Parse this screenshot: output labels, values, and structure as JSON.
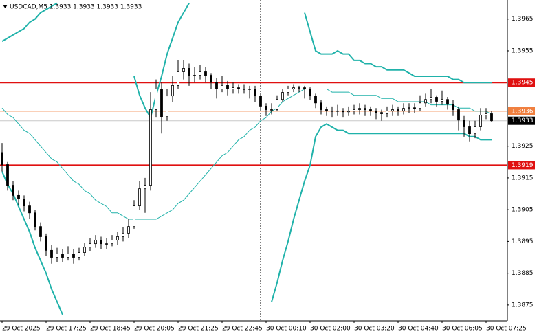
{
  "chart_data": {
    "type": "candlestick",
    "title": "USDCAD,M5  1.3933 1.3933 1.3933 1.3933",
    "categories": [
      "29 Oct 2025",
      null,
      null,
      null,
      null,
      null,
      null,
      null,
      "29 Oct 17:25",
      null,
      null,
      null,
      null,
      null,
      null,
      null,
      "29 Oct 18:45",
      null,
      null,
      null,
      null,
      null,
      null,
      null,
      "29 Oct 20:05",
      null,
      null,
      null,
      null,
      null,
      null,
      null,
      "29 Oct 21:25",
      null,
      null,
      null,
      null,
      null,
      null,
      null,
      "29 Oct 22:45",
      null,
      null,
      null,
      null,
      null,
      null,
      null,
      "30 Oct 00:10",
      null,
      null,
      null,
      null,
      null,
      null,
      null,
      "30 Oct 02:00",
      null,
      null,
      null,
      null,
      null,
      null,
      null,
      "30 Oct 03:20",
      null,
      null,
      null,
      null,
      null,
      null,
      null,
      "30 Oct 04:40",
      null,
      null,
      null,
      null,
      null,
      null,
      null,
      "30 Oct 06:05",
      null,
      null,
      null,
      null,
      null,
      null,
      null,
      "30 Oct 07:25",
      null
    ],
    "open": [
      1.3923,
      1.39192,
      1.39127,
      1.39095,
      1.39084,
      1.39062,
      1.3904,
      1.38997,
      1.38965,
      1.38922,
      1.389,
      1.38911,
      1.389,
      1.38911,
      1.389,
      1.38915,
      1.38932,
      1.38943,
      1.38954,
      1.38943,
      1.38943,
      1.38954,
      1.38965,
      1.38976,
      1.38997,
      1.39062,
      1.39116,
      1.39127,
      1.39365,
      1.3943,
      1.39343,
      1.39408,
      1.39441,
      1.39484,
      1.39495,
      1.39473,
      1.39473,
      1.39484,
      1.39473,
      1.39451,
      1.3943,
      1.39441,
      1.3943,
      1.39434,
      1.3943,
      1.3943,
      1.3943,
      1.39408,
      1.39376,
      1.39365,
      1.39365,
      1.39397,
      1.39419,
      1.3943,
      1.39434,
      1.39434,
      1.3943,
      1.39408,
      1.39386,
      1.39365,
      1.39361,
      1.39361,
      1.39361,
      1.39358,
      1.39361,
      1.39365,
      1.39369,
      1.39365,
      1.39361,
      1.39356,
      1.39352,
      1.39361,
      1.39365,
      1.39361,
      1.39369,
      1.39371,
      1.39369,
      1.39386,
      1.39397,
      1.39404,
      1.39391,
      1.39397,
      1.39382,
      1.39365,
      1.39332,
      1.39311,
      1.39289,
      1.39311,
      1.39348,
      1.39352
    ],
    "high": [
      1.3926,
      1.392,
      1.3914,
      1.3911,
      1.39095,
      1.39075,
      1.3905,
      1.3901,
      1.38975,
      1.3894,
      1.3893,
      1.38925,
      1.38935,
      1.38925,
      1.3893,
      1.38945,
      1.3896,
      1.3897,
      1.38965,
      1.3896,
      1.3897,
      1.3898,
      1.38995,
      1.3902,
      1.3908,
      1.3914,
      1.3915,
      1.3942,
      1.3946,
      1.3945,
      1.3943,
      1.3947,
      1.3952,
      1.3952,
      1.3951,
      1.395,
      1.39505,
      1.395,
      1.3948,
      1.39465,
      1.3947,
      1.39455,
      1.3945,
      1.39445,
      1.39445,
      1.3944,
      1.3944,
      1.39415,
      1.39385,
      1.39385,
      1.3941,
      1.3943,
      1.3944,
      1.39445,
      1.3944,
      1.3944,
      1.39435,
      1.39415,
      1.39395,
      1.39375,
      1.39375,
      1.3938,
      1.3937,
      1.39375,
      1.3938,
      1.39385,
      1.3938,
      1.39375,
      1.3937,
      1.39365,
      1.39375,
      1.3938,
      1.39375,
      1.39385,
      1.39385,
      1.39385,
      1.3941,
      1.39415,
      1.3943,
      1.3941,
      1.39425,
      1.39405,
      1.39395,
      1.39375,
      1.39345,
      1.3933,
      1.3933,
      1.3937,
      1.3937,
      1.3936
    ],
    "low": [
      1.3917,
      1.3911,
      1.3908,
      1.39065,
      1.39045,
      1.3902,
      1.38985,
      1.3895,
      1.38905,
      1.3888,
      1.38885,
      1.38885,
      1.3889,
      1.3888,
      1.3889,
      1.38905,
      1.3892,
      1.3893,
      1.38925,
      1.38925,
      1.38935,
      1.3894,
      1.3895,
      1.3896,
      1.3899,
      1.3905,
      1.3904,
      1.3911,
      1.3934,
      1.3929,
      1.3933,
      1.3939,
      1.3943,
      1.3946,
      1.3944,
      1.3945,
      1.3946,
      1.3945,
      1.3943,
      1.394,
      1.3942,
      1.3941,
      1.39415,
      1.39415,
      1.39415,
      1.394,
      1.3939,
      1.3936,
      1.39345,
      1.3935,
      1.3936,
      1.3939,
      1.3941,
      1.3942,
      1.3942,
      1.394,
      1.39395,
      1.3937,
      1.3935,
      1.39345,
      1.3934,
      1.39345,
      1.3934,
      1.39345,
      1.3935,
      1.3935,
      1.39345,
      1.39345,
      1.39335,
      1.3933,
      1.3934,
      1.39345,
      1.39345,
      1.3935,
      1.39355,
      1.39355,
      1.3936,
      1.39375,
      1.39385,
      1.39375,
      1.3938,
      1.39365,
      1.39345,
      1.393,
      1.3928,
      1.39265,
      1.39275,
      1.393,
      1.39335,
      1.39325
    ],
    "close": [
      1.39192,
      1.39127,
      1.39095,
      1.39084,
      1.39062,
      1.3904,
      1.38997,
      1.38965,
      1.38922,
      1.389,
      1.38911,
      1.389,
      1.38911,
      1.389,
      1.38915,
      1.38932,
      1.38943,
      1.38954,
      1.38943,
      1.38943,
      1.38954,
      1.38965,
      1.38976,
      1.38997,
      1.39062,
      1.39116,
      1.39127,
      1.39365,
      1.3943,
      1.39343,
      1.39408,
      1.39441,
      1.39484,
      1.39495,
      1.39473,
      1.39473,
      1.39484,
      1.39473,
      1.39451,
      1.3943,
      1.39441,
      1.3943,
      1.39434,
      1.3943,
      1.3943,
      1.3943,
      1.39408,
      1.39376,
      1.39365,
      1.39365,
      1.39397,
      1.39419,
      1.3943,
      1.39434,
      1.39434,
      1.3943,
      1.39408,
      1.39386,
      1.39365,
      1.39361,
      1.39361,
      1.39361,
      1.39358,
      1.39361,
      1.39365,
      1.39369,
      1.39365,
      1.39361,
      1.39356,
      1.39352,
      1.39361,
      1.39365,
      1.39361,
      1.39369,
      1.39371,
      1.39369,
      1.39386,
      1.39397,
      1.39404,
      1.39391,
      1.39397,
      1.39382,
      1.39365,
      1.39332,
      1.39311,
      1.39289,
      1.39311,
      1.39348,
      1.39352,
      1.3933
    ],
    "lines": [
      {
        "color": "#20b2aa",
        "width": 2,
        "values": [
          1.3958,
          1.3959,
          1.396,
          1.3961,
          1.3962,
          1.3964,
          1.3965,
          1.3967,
          1.3968,
          1.3969,
          1.397,
          null,
          null,
          null,
          null,
          null,
          null,
          null,
          null,
          null,
          null,
          null,
          null,
          null,
          1.3947,
          1.3941,
          1.3937,
          1.3934,
          1.3941,
          1.3947,
          1.3954,
          1.3959,
          1.3964,
          1.3967,
          1.397,
          null,
          null,
          null,
          null,
          null,
          null,
          null,
          null,
          null,
          null,
          null,
          null,
          null,
          null,
          null,
          null,
          null,
          null,
          null,
          null,
          1.3967,
          1.3961,
          1.3955,
          1.3954,
          1.3954,
          1.3954,
          1.3955,
          1.3954,
          1.3954,
          1.3952,
          1.3952,
          1.3951,
          1.3951,
          1.395,
          1.395,
          1.3949,
          1.3949,
          1.3949,
          1.3949,
          1.3948,
          1.3947,
          1.3947,
          1.3947,
          1.3947,
          1.3947,
          1.3947,
          1.3947,
          1.3946,
          1.3946,
          1.3945,
          1.3945,
          1.3945,
          1.3945,
          1.3945,
          1.3945
        ]
      },
      {
        "color": "#20b2aa",
        "width": 1,
        "values": [
          1.3937,
          1.3935,
          1.3934,
          1.3932,
          1.393,
          1.3929,
          1.3927,
          1.3925,
          1.3923,
          1.3921,
          1.392,
          1.3918,
          1.3916,
          1.3914,
          1.3913,
          1.3911,
          1.391,
          1.3908,
          1.3907,
          1.3906,
          1.3904,
          1.3904,
          1.3903,
          1.3902,
          1.3902,
          1.3902,
          1.3902,
          1.3902,
          1.3902,
          1.3903,
          1.3904,
          1.3905,
          1.3907,
          1.3908,
          1.391,
          1.3912,
          1.3914,
          1.3916,
          1.3918,
          1.392,
          1.3922,
          1.3923,
          1.3925,
          1.3927,
          1.3928,
          1.393,
          1.3931,
          1.3933,
          1.3934,
          1.3936,
          1.3937,
          1.3939,
          1.394,
          1.3941,
          1.3942,
          1.3943,
          1.3943,
          1.3943,
          1.3943,
          1.3943,
          1.3942,
          1.3942,
          1.3942,
          1.3942,
          1.3941,
          1.3941,
          1.3941,
          1.3941,
          1.3941,
          1.394,
          1.394,
          1.394,
          1.3939,
          1.3939,
          1.3939,
          1.3939,
          1.3939,
          1.3939,
          1.3938,
          1.3938,
          1.3938,
          1.3938,
          1.3938,
          1.3937,
          1.3937,
          1.3937,
          1.3936,
          1.3936,
          1.3936,
          1.3935
        ]
      },
      {
        "color": "#20b2aa",
        "width": 2,
        "values": [
          1.3917,
          1.3913,
          1.391,
          1.3906,
          1.3902,
          1.3898,
          1.3893,
          1.3889,
          1.3885,
          1.388,
          1.3876,
          1.3872,
          null,
          null,
          null,
          null,
          null,
          null,
          null,
          null,
          null,
          null,
          null,
          null,
          null,
          null,
          null,
          null,
          null,
          null,
          null,
          null,
          null,
          null,
          null,
          null,
          null,
          null,
          null,
          null,
          null,
          null,
          null,
          null,
          null,
          null,
          null,
          null,
          null,
          1.3876,
          1.3882,
          1.3889,
          1.3895,
          1.3902,
          1.3908,
          1.3914,
          1.3919,
          1.3928,
          1.3931,
          1.3932,
          1.3931,
          1.393,
          1.393,
          1.3929,
          1.3929,
          1.3929,
          1.3929,
          1.3929,
          1.3929,
          1.3929,
          1.3929,
          1.3929,
          1.3929,
          1.3929,
          1.3929,
          1.3929,
          1.3929,
          1.3929,
          1.3929,
          1.3929,
          1.3929,
          1.3929,
          1.3929,
          1.3929,
          1.3929,
          1.3928,
          1.3928,
          1.3927,
          1.3927,
          1.3927
        ]
      }
    ],
    "levels": [
      {
        "value": 1.3945,
        "color": "#e01010"
      },
      {
        "value": 1.3919,
        "color": "#e01010"
      },
      {
        "value": 1.3936,
        "color": "#f08040"
      }
    ],
    "current_price": 1.3933,
    "ylim": [
      1.387,
      1.3971
    ],
    "yticks": [
      1.3965,
      1.3955,
      1.3925,
      1.3915,
      1.3905,
      1.3895,
      1.3885,
      1.3875
    ],
    "grid": false
  }
}
